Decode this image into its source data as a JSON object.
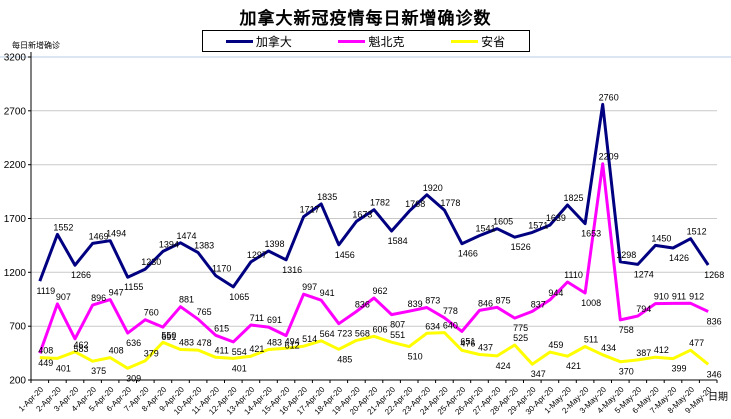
{
  "title": "加拿大新冠疫情每日新增确诊数",
  "y_axis_title": "每日新增确诊",
  "x_axis_title": "日期",
  "colors": {
    "canada": "#000080",
    "quebec": "#ff00ff",
    "ontario": "#ffff00",
    "grid": "#c9c9c9",
    "axis": "#000000",
    "top_border": "#b7cce4",
    "label_text": "#000000"
  },
  "legend": [
    {
      "label": "加拿大",
      "color": "#000080"
    },
    {
      "label": "魁北克",
      "color": "#ff00ff"
    },
    {
      "label": "安省",
      "color": "#ffff00"
    }
  ],
  "chart_data": {
    "type": "line",
    "title": "加拿大新冠疫情每日新增确诊数",
    "xlabel": "日期",
    "ylabel": "每日新增确诊",
    "ylim": [
      200,
      3200
    ],
    "yticks": [
      200,
      700,
      1200,
      1700,
      2200,
      2700,
      3200
    ],
    "grid": true,
    "legend_position": "top",
    "x": [
      "1-Apr-20",
      "2-Apr-20",
      "3-Apr-20",
      "4-Apr-20",
      "5-Apr-20",
      "6-Apr-20",
      "7-Apr-20",
      "8-Apr-20",
      "9-Apr-20",
      "10-Apr-20",
      "11-Apr-20",
      "12-Apr-20",
      "13-Apr-20",
      "14-Apr-20",
      "15-Apr-20",
      "16-Apr-20",
      "17-Apr-20",
      "18-Apr-20",
      "19-Apr-20",
      "20-Apr-20",
      "21-Apr-20",
      "22-Apr-20",
      "23-Apr-20",
      "24-Apr-20",
      "25-Apr-20",
      "26-Apr-20",
      "27-Apr-20",
      "28-Apr-20",
      "29-Apr-20",
      "30-Apr-20",
      "1-May-20",
      "2-May-20",
      "3-May-20",
      "4-May-20",
      "5-May-20",
      "6-May-20",
      "7-May-20",
      "8-May-20",
      "9-May-20"
    ],
    "series": [
      {
        "name": "加拿大",
        "color": "#000080",
        "values": [
          1119,
          1552,
          1266,
          1469,
          1494,
          1155,
          1230,
          1394,
          1474,
          1383,
          1170,
          1065,
          1297,
          1398,
          1316,
          1717,
          1835,
          1456,
          1673,
          1782,
          1584,
          1768,
          1920,
          1778,
          1466,
          1541,
          1605,
          1526,
          1571,
          1639,
          1825,
          1653,
          2760,
          1298,
          1274,
          1450,
          1426,
          1512,
          1268
        ]
      },
      {
        "name": "魁北克",
        "color": "#ff00ff",
        "values": [
          449,
          907,
          583,
          896,
          947,
          636,
          760,
          691,
          881,
          765,
          615,
          554,
          711,
          691,
          612,
          997,
          941,
          723,
          836,
          962,
          807,
          839,
          873,
          778,
          651,
          846,
          875,
          775,
          837,
          944,
          1110,
          1008,
          2209,
          758,
          794,
          910,
          911,
          912,
          836
        ]
      },
      {
        "name": "安省",
        "color": "#ffff00",
        "values": [
          408,
          401,
          462,
          375,
          408,
          309,
          379,
          550,
          483,
          478,
          411,
          401,
          421,
          483,
          494,
          514,
          564,
          485,
          568,
          606,
          551,
          510,
          634,
          640,
          476,
          437,
          424,
          525,
          347,
          459,
          421,
          511,
          434,
          370,
          387,
          412,
          399,
          477,
          346
        ]
      }
    ]
  }
}
